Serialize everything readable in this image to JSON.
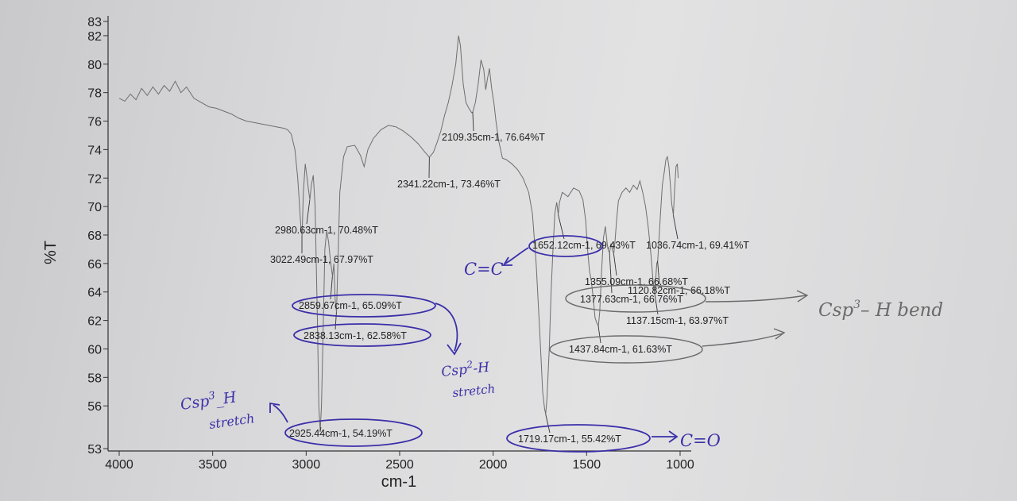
{
  "chart_data": {
    "type": "line",
    "xlabel": "cm-1",
    "ylabel": "%T",
    "xlim": [
      4000,
      1000
    ],
    "ylim": [
      53,
      83
    ],
    "x_ticks": [
      "4000",
      "3500",
      "3000",
      "2500",
      "2000",
      "1500",
      "1000"
    ],
    "y_ticks": [
      "53",
      "56",
      "58",
      "60",
      "62",
      "64",
      "66",
      "68",
      "70",
      "72",
      "74",
      "76",
      "78",
      "80",
      "82",
      "83"
    ],
    "grid": false,
    "spectrum": [
      [
        4000,
        77.6
      ],
      [
        3970,
        77.4
      ],
      [
        3940,
        77.9
      ],
      [
        3910,
        77.5
      ],
      [
        3880,
        78.3
      ],
      [
        3850,
        77.8
      ],
      [
        3820,
        78.4
      ],
      [
        3790,
        77.9
      ],
      [
        3760,
        78.5
      ],
      [
        3730,
        78.1
      ],
      [
        3700,
        78.8
      ],
      [
        3670,
        78.0
      ],
      [
        3640,
        78.4
      ],
      [
        3600,
        77.6
      ],
      [
        3560,
        77.3
      ],
      [
        3520,
        77.0
      ],
      [
        3480,
        76.9
      ],
      [
        3440,
        76.7
      ],
      [
        3400,
        76.5
      ],
      [
        3360,
        76.2
      ],
      [
        3320,
        76.0
      ],
      [
        3280,
        75.9
      ],
      [
        3240,
        75.8
      ],
      [
        3200,
        75.7
      ],
      [
        3160,
        75.6
      ],
      [
        3120,
        75.5
      ],
      [
        3100,
        75.4
      ],
      [
        3080,
        75.1
      ],
      [
        3060,
        74.0
      ],
      [
        3045,
        72.0
      ],
      [
        3035,
        70.0
      ],
      [
        3028,
        68.5
      ],
      [
        3022,
        67.97
      ],
      [
        3015,
        71.0
      ],
      [
        3005,
        73.0
      ],
      [
        2995,
        72.0
      ],
      [
        2988,
        71.2
      ],
      [
        2980,
        70.48
      ],
      [
        2972,
        71.5
      ],
      [
        2962,
        72.2
      ],
      [
        2952,
        70.0
      ],
      [
        2940,
        62.0
      ],
      [
        2932,
        56.0
      ],
      [
        2925,
        54.19
      ],
      [
        2918,
        56.0
      ],
      [
        2908,
        62.0
      ],
      [
        2900,
        67.0
      ],
      [
        2890,
        68.3
      ],
      [
        2880,
        67.5
      ],
      [
        2870,
        66.2
      ],
      [
        2859,
        65.09
      ],
      [
        2852,
        66.0
      ],
      [
        2845,
        63.5
      ],
      [
        2838,
        62.58
      ],
      [
        2830,
        66.0
      ],
      [
        2820,
        71.0
      ],
      [
        2800,
        73.5
      ],
      [
        2780,
        74.2
      ],
      [
        2740,
        74.3
      ],
      [
        2710,
        73.6
      ],
      [
        2690,
        72.8
      ],
      [
        2670,
        74.0
      ],
      [
        2640,
        74.8
      ],
      [
        2600,
        75.4
      ],
      [
        2560,
        75.7
      ],
      [
        2520,
        75.6
      ],
      [
        2480,
        75.3
      ],
      [
        2440,
        74.9
      ],
      [
        2400,
        74.4
      ],
      [
        2370,
        73.9
      ],
      [
        2341,
        73.46
      ],
      [
        2320,
        73.8
      ],
      [
        2300,
        74.5
      ],
      [
        2280,
        75.3
      ],
      [
        2260,
        76.4
      ],
      [
        2240,
        77.3
      ],
      [
        2220,
        78.5
      ],
      [
        2200,
        80.0
      ],
      [
        2185,
        82.0
      ],
      [
        2175,
        81.3
      ],
      [
        2160,
        78.6
      ],
      [
        2145,
        77.3
      ],
      [
        2130,
        76.9
      ],
      [
        2115,
        76.6
      ],
      [
        2109,
        76.64
      ],
      [
        2095,
        77.3
      ],
      [
        2080,
        78.6
      ],
      [
        2065,
        80.3
      ],
      [
        2050,
        79.6
      ],
      [
        2040,
        78.2
      ],
      [
        2030,
        79.0
      ],
      [
        2020,
        79.7
      ],
      [
        2008,
        78.3
      ],
      [
        1995,
        77.2
      ],
      [
        1985,
        76.0
      ],
      [
        1970,
        74.6
      ],
      [
        1950,
        73.4
      ],
      [
        1930,
        73.3
      ],
      [
        1900,
        73.0
      ],
      [
        1870,
        72.6
      ],
      [
        1840,
        72.0
      ],
      [
        1810,
        71.0
      ],
      [
        1790,
        69.5
      ],
      [
        1770,
        66.0
      ],
      [
        1750,
        61.0
      ],
      [
        1735,
        57.0
      ],
      [
        1725,
        55.8
      ],
      [
        1719,
        55.42
      ],
      [
        1712,
        56.5
      ],
      [
        1700,
        60.0
      ],
      [
        1690,
        64.0
      ],
      [
        1680,
        67.0
      ],
      [
        1670,
        69.5
      ],
      [
        1660,
        70.3
      ],
      [
        1652,
        69.43
      ],
      [
        1645,
        70.3
      ],
      [
        1630,
        71.0
      ],
      [
        1600,
        70.7
      ],
      [
        1570,
        71.3
      ],
      [
        1540,
        71.1
      ],
      [
        1520,
        70.5
      ],
      [
        1505,
        69.0
      ],
      [
        1495,
        67.0
      ],
      [
        1485,
        65.5
      ],
      [
        1475,
        64.8
      ],
      [
        1465,
        63.6
      ],
      [
        1455,
        62.2
      ],
      [
        1445,
        61.8
      ],
      [
        1437,
        61.63
      ],
      [
        1430,
        62.6
      ],
      [
        1420,
        65.5
      ],
      [
        1410,
        67.8
      ],
      [
        1400,
        68.6
      ],
      [
        1390,
        67.4
      ],
      [
        1384,
        66.9
      ],
      [
        1377,
        66.76
      ],
      [
        1370,
        67.4
      ],
      [
        1363,
        67.0
      ],
      [
        1355,
        66.68
      ],
      [
        1348,
        67.6
      ],
      [
        1340,
        69.0
      ],
      [
        1330,
        70.4
      ],
      [
        1310,
        71.0
      ],
      [
        1290,
        71.3
      ],
      [
        1270,
        71.0
      ],
      [
        1250,
        71.5
      ],
      [
        1230,
        71.2
      ],
      [
        1215,
        71.8
      ],
      [
        1200,
        71.0
      ],
      [
        1185,
        70.0
      ],
      [
        1170,
        68.5
      ],
      [
        1155,
        66.5
      ],
      [
        1145,
        64.8
      ],
      [
        1137,
        63.97
      ],
      [
        1130,
        65.0
      ],
      [
        1125,
        66.0
      ],
      [
        1120,
        66.18
      ],
      [
        1114,
        67.5
      ],
      [
        1105,
        69.5
      ],
      [
        1095,
        71.5
      ],
      [
        1085,
        72.4
      ],
      [
        1076,
        73.3
      ],
      [
        1068,
        73.5
      ],
      [
        1060,
        72.8
      ],
      [
        1052,
        71.5
      ],
      [
        1045,
        70.2
      ],
      [
        1036,
        69.41
      ],
      [
        1030,
        71.0
      ],
      [
        1022,
        72.8
      ],
      [
        1015,
        73.0
      ],
      [
        1010,
        72.0
      ]
    ],
    "peaks": [
      {
        "x": 2109.35,
        "y": 76.64,
        "label": "2109.35cm-1, 76.64%T"
      },
      {
        "x": 2341.22,
        "y": 73.46,
        "label": "2341.22cm-1, 73.46%T"
      },
      {
        "x": 2980.63,
        "y": 70.48,
        "label": "2980.63cm-1, 70.48%T"
      },
      {
        "x": 3022.49,
        "y": 67.97,
        "label": "3022.49cm-1, 67.97%T"
      },
      {
        "x": 2859.67,
        "y": 65.09,
        "label": "2859.67cm-1, 65.09%T"
      },
      {
        "x": 2838.13,
        "y": 62.58,
        "label": "2838.13cm-1, 62.58%T"
      },
      {
        "x": 2925.44,
        "y": 54.19,
        "label": "2925.44cm-1, 54.19%T"
      },
      {
        "x": 1652.12,
        "y": 69.43,
        "label": "1652.12cm-1, 69.43%T"
      },
      {
        "x": 1036.74,
        "y": 69.41,
        "label": "1036.74cm-1, 69.41%T"
      },
      {
        "x": 1355.09,
        "y": 66.68,
        "label": "1355.09cm-1, 66.68%T"
      },
      {
        "x": 1120.82,
        "y": 66.18,
        "label": "1120.82cm-1, 66.18%T"
      },
      {
        "x": 1377.63,
        "y": 66.76,
        "label": "1377.63cm-1, 66.76%T"
      },
      {
        "x": 1137.15,
        "y": 63.97,
        "label": "1137.15cm-1, 63.97%T"
      },
      {
        "x": 1437.84,
        "y": 61.63,
        "label": "1437.84cm-1, 61.63%T"
      },
      {
        "x": 1719.17,
        "y": 55.42,
        "label": "1719.17cm-1, 55.42%T"
      }
    ],
    "annotations": {
      "sp3_stretch_line1": "Csp",
      "sp3_stretch_sup": "3",
      "sp3_stretch_suffix": "_H",
      "sp3_stretch_line2": "stretch",
      "sp2_stretch_line1": "Csp",
      "sp2_stretch_sup": "2",
      "sp2_stretch_suffix": "-H",
      "sp2_stretch_line2": "stretch",
      "alkene": "C=C",
      "carbonyl": "C=O",
      "sp3_bend": "Csp",
      "sp3_bend_sup": "3",
      "sp3_bend_suffix": "– H bend"
    },
    "colors": {
      "spectrum": "#6e6e6e",
      "leader": "#333333",
      "pen": "#3a2fa8",
      "pencil": "#6a6a6a"
    }
  }
}
